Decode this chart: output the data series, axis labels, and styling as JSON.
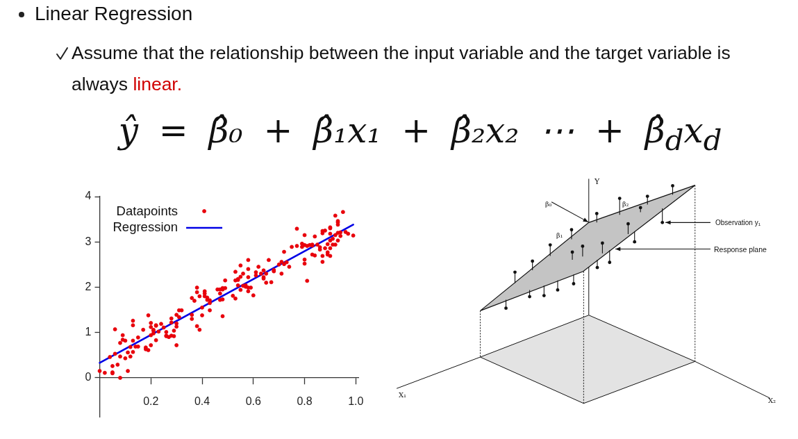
{
  "chart_data": [
    {
      "type": "scatter",
      "title": "Linear Regression",
      "subtitle": "Assume that the relationship between the input variable and the target variable is always linear.",
      "annotations": [
        "ŷ = β̂₀ + β̂₁x₁ + β̂₂x₂ ⋯ + β̂$_{d}$x$_{d}$"
      ],
      "xlim": [
        0,
        1.01
      ],
      "ylim": [
        -0.86,
        4
      ],
      "xticks": [
        0.2,
        0.4,
        0.6,
        0.8,
        {
          "value": 1,
          "label": "1.0"
        }
      ],
      "yticks": [
        0,
        1,
        2,
        3,
        4
      ],
      "legend": "top left",
      "series": [
        {
          "name": "Datapoints",
          "type": "scatter",
          "color": "#e8000b",
          "marker": "circle",
          "x": [
            0.0,
            0.02,
            0.05,
            0.05,
            0.05,
            0.08,
            0.07,
            0.04,
            0.06,
            0.06,
            0.08,
            0.09,
            0.09,
            0.1,
            0.08,
            0.1,
            0.11,
            0.11,
            0.12,
            0.12,
            0.13,
            0.13,
            0.13,
            0.13,
            0.14,
            0.15,
            0.15,
            0.17,
            0.18,
            0.18,
            0.19,
            0.19,
            0.2,
            0.2,
            0.2,
            0.2,
            0.21,
            0.21,
            0.21,
            0.22,
            0.22,
            0.22,
            0.23,
            0.24,
            0.25,
            0.26,
            0.26,
            0.26,
            0.27,
            0.28,
            0.28,
            0.28,
            0.29,
            0.29,
            0.3,
            0.3,
            0.3,
            0.3,
            0.31,
            0.31,
            0.32,
            0.36,
            0.36,
            0.36,
            0.37,
            0.38,
            0.38,
            0.38,
            0.39,
            0.39,
            0.4,
            0.4,
            0.41,
            0.41,
            0.41,
            0.42,
            0.42,
            0.43,
            0.43,
            0.43,
            0.46,
            0.47,
            0.47,
            0.47,
            0.48,
            0.48,
            0.48,
            0.48,
            0.49,
            0.49,
            0.52,
            0.53,
            0.53,
            0.53,
            0.54,
            0.54,
            0.54,
            0.55,
            0.55,
            0.55,
            0.56,
            0.56,
            0.57,
            0.57,
            0.58,
            0.58,
            0.58,
            0.58,
            0.58,
            0.59,
            0.6,
            0.61,
            0.61,
            0.62,
            0.63,
            0.64,
            0.64,
            0.64,
            0.65,
            0.65,
            0.66,
            0.67,
            0.68,
            0.68,
            0.7,
            0.71,
            0.71,
            0.72,
            0.72,
            0.73,
            0.74,
            0.75,
            0.77,
            0.77,
            0.79,
            0.79,
            0.8,
            0.8,
            0.8,
            0.8,
            0.81,
            0.81,
            0.82,
            0.83,
            0.83,
            0.83,
            0.84,
            0.84,
            0.85,
            0.86,
            0.86,
            0.87,
            0.87,
            0.87,
            0.87,
            0.88,
            0.88,
            0.89,
            0.89,
            0.89,
            0.9,
            0.9,
            0.9,
            0.9,
            0.9,
            0.9,
            0.91,
            0.91,
            0.92,
            0.92,
            0.92,
            0.93,
            0.93,
            0.93,
            0.93,
            0.93,
            0.94,
            0.94,
            0.95,
            0.96,
            0.97,
            0.99
          ],
          "values": [
            0.15,
            0.11,
            0.26,
            0.12,
            0.1,
            0.0,
            0.29,
            0.46,
            1.07,
            0.53,
            0.77,
            0.84,
            0.94,
            0.82,
            0.47,
            0.43,
            0.15,
            0.56,
            0.47,
            0.68,
            0.82,
            1.16,
            1.26,
            0.57,
            0.69,
            0.69,
            0.89,
            1.06,
            0.67,
            0.63,
            0.61,
            1.38,
            0.72,
            0.94,
            1.21,
            1.12,
            0.98,
            1.06,
            1.04,
            1.16,
            0.83,
            1.15,
            1.02,
            1.19,
            1.11,
            0.92,
            1.01,
            0.93,
            0.9,
            1.31,
            0.93,
            1.22,
            1.04,
            0.92,
            1.13,
            0.72,
            1.2,
            1.39,
            1.34,
            1.49,
            1.49,
            1.76,
            1.39,
            1.3,
            1.7,
            1.99,
            1.89,
            1.14,
            1.06,
            1.8,
            1.55,
            1.38,
            1.91,
            1.86,
            1.8,
            1.72,
            1.77,
            1.71,
            1.49,
            1.65,
            1.95,
            1.86,
            1.95,
            1.72,
            1.73,
            1.98,
            1.95,
            1.36,
            2.15,
            1.98,
            1.81,
            1.75,
            2.15,
            2.34,
            2.18,
            2.16,
            2.04,
            2.23,
            1.94,
            2.48,
            2.3,
            2.03,
            2.04,
            2.01,
            1.91,
            2.6,
            2.22,
            1.99,
            2.4,
            1.99,
            1.82,
            2.26,
            2.33,
            2.45,
            2.3,
            2.19,
            2.22,
            2.37,
            2.1,
            2.3,
            2.6,
            2.11,
            2.35,
            2.38,
            2.5,
            2.56,
            2.3,
            2.51,
            2.78,
            2.55,
            2.45,
            2.89,
            2.91,
            3.29,
            2.89,
            2.96,
            2.93,
            3.15,
            2.52,
            2.61,
            2.14,
            2.91,
            2.93,
            2.92,
            2.94,
            2.72,
            2.7,
            3.12,
            2.94,
            2.88,
            2.83,
            3.24,
            3.19,
            2.56,
            2.69,
            2.86,
            3.25,
            2.77,
            2.72,
            2.95,
            3.3,
            3.03,
            3.18,
            2.69,
            3.32,
            2.86,
            3.07,
            2.94,
            2.94,
            3.58,
            3.15,
            3.38,
            3.43,
            3.46,
            3.03,
            3.2,
            3.21,
            3.13,
            3.66,
            3.22,
            3.18,
            3.14
          ]
        },
        {
          "name": "Regression",
          "type": "line",
          "color": "#0000e6",
          "marker": "none",
          "x": [
            0,
            0.99
          ],
          "values": [
            0.33,
            3.38
          ]
        }
      ]
    },
    {
      "type": "other",
      "annotations": [
        "Y",
        "β₀",
        "β₁",
        "β₂",
        "Observation y₁",
        "Response plane",
        "X₁",
        "X₂"
      ]
    }
  ]
}
